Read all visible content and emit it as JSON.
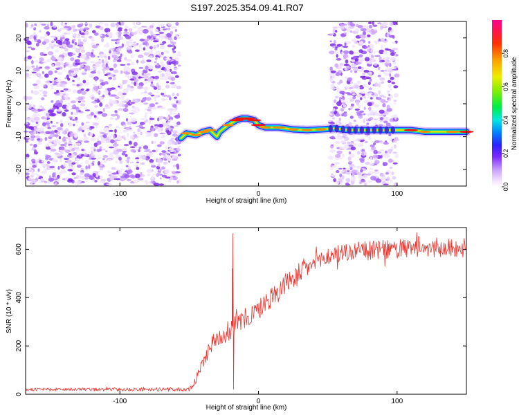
{
  "title": "S197.2025.354.09.41.R07",
  "chart_data": [
    {
      "type": "heatmap",
      "xlabel": "Height of straight line (km)",
      "ylabel": "Frequency (Hz)",
      "xlim": [
        -168,
        150
      ],
      "ylim": [
        -25,
        25
      ],
      "xticks": [
        -100,
        0,
        100
      ],
      "xtick_labels": [
        "-100",
        "0",
        "100"
      ],
      "yticks": [
        -20,
        -10,
        0,
        10,
        20
      ],
      "ytick_labels": [
        "-20",
        "-10",
        "0",
        "10",
        "20"
      ],
      "noise_regions": [
        [
          -168,
          -57
        ],
        [
          52,
          100
        ]
      ],
      "ridge": {
        "x": [
          -56,
          -52,
          -45,
          -40,
          -35,
          -30,
          -28,
          -22,
          -16,
          -12,
          -8,
          -3,
          0,
          5,
          15,
          25,
          35,
          45,
          55,
          65,
          75,
          85,
          97,
          100,
          110,
          120,
          130,
          140,
          150
        ],
        "freq": [
          -10.5,
          -9,
          -9.5,
          -8.5,
          -8,
          -10,
          -8.5,
          -6.5,
          -5,
          -4.5,
          -4.5,
          -5,
          -6.5,
          -7.2,
          -7.2,
          -7.8,
          -8,
          -7.8,
          -7.5,
          -8,
          -8,
          -8,
          -8,
          -8,
          -8,
          -8.5,
          -8.5,
          -8.5,
          -8.5
        ],
        "amplitude": [
          0.35,
          0.6,
          0.55,
          0.6,
          0.7,
          0.4,
          0.5,
          0.6,
          0.8,
          0.85,
          0.9,
          0.8,
          0.85,
          0.6,
          0.75,
          0.6,
          0.55,
          0.6,
          0.5,
          0.4,
          0.45,
          0.35,
          0.3,
          0.5,
          0.8,
          0.6,
          0.5,
          0.7,
          0.85
        ]
      },
      "colorbar": {
        "label": "Normalized spectral amplitude",
        "range": [
          0,
          1
        ],
        "ticks": [
          0.0,
          0.2,
          0.4,
          0.6,
          0.8
        ],
        "tick_labels": [
          "0.0",
          "0.2",
          "0.4",
          "0.6",
          "0.8"
        ]
      }
    },
    {
      "type": "line",
      "xlabel": "Height of straight line (km)",
      "ylabel": "SNR (10 * v/v)",
      "xlim": [
        -168,
        150
      ],
      "ylim": [
        0,
        690
      ],
      "xticks": [
        -100,
        0,
        100
      ],
      "xtick_labels": [
        "-100",
        "0",
        "100"
      ],
      "yticks": [
        0,
        200,
        400,
        600
      ],
      "ytick_labels": [
        "0",
        "200",
        "400",
        "600"
      ],
      "color": "#e8302a",
      "series": [
        {
          "name": "SNR",
          "trend_x": [
            -168,
            -50,
            -45,
            -40,
            -35,
            -30,
            -25,
            -20,
            -15,
            -10,
            -5,
            0,
            5,
            10,
            15,
            20,
            25,
            30,
            40,
            50,
            60,
            80,
            100,
            120,
            150
          ],
          "trend_y": [
            20,
            20,
            60,
            130,
            200,
            230,
            250,
            270,
            290,
            310,
            330,
            350,
            380,
            405,
            430,
            460,
            480,
            505,
            540,
            570,
            585,
            595,
            600,
            605,
            605
          ],
          "noise_x": [
            -168,
            -50,
            -40,
            -20,
            0,
            20,
            40,
            150
          ],
          "noise_amp": [
            6,
            8,
            30,
            45,
            45,
            45,
            40,
            40
          ],
          "spikes": [
            {
              "x": -18.5,
              "y": 665
            },
            {
              "x": -18.0,
              "y": 20
            },
            {
              "x": -18.9,
              "y": 520
            }
          ]
        }
      ]
    }
  ]
}
